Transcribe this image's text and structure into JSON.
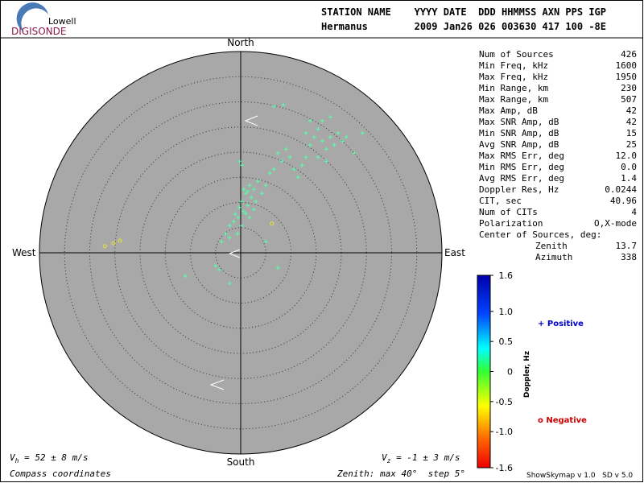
{
  "logo": {
    "top": "Lowell",
    "bottom": "DIGISONDE"
  },
  "header": {
    "columns": "STATION NAME    YYYY DATE  DDD HHMMSS AXN PPS IGP",
    "values": "Hermanus        2009 Jan26 026 003630 417 100 -8E"
  },
  "stats": {
    "rows": [
      [
        "Num of Sources",
        "426"
      ],
      [
        "Min Freq, kHz",
        "1600"
      ],
      [
        "Max Freq, kHz",
        "1950"
      ],
      [
        "Min Range, km",
        "230"
      ],
      [
        "Max Range, km",
        "507"
      ],
      [
        "Max Amp, dB",
        "42"
      ],
      [
        "Max SNR Amp, dB",
        "42"
      ],
      [
        "Min SNR Amp, dB",
        "15"
      ],
      [
        "Avg SNR Amp, dB",
        "25"
      ],
      [
        "Max RMS Err, deg",
        "12.0"
      ],
      [
        "Min RMS Err, deg",
        "0.0"
      ],
      [
        "Avg RMS Err, deg",
        "1.4"
      ],
      [
        "Doppler Res, Hz",
        "0.0244"
      ],
      [
        "CIT, sec",
        "40.96"
      ],
      [
        "Num of CITs",
        "4"
      ],
      [
        "Polarization",
        "O,X-mode"
      ]
    ],
    "center_title": "Center of Sources, deg:",
    "center_rows": [
      [
        "Zenith",
        "13.7"
      ],
      [
        "Azimuth",
        "338"
      ]
    ]
  },
  "chart_data": {
    "type": "skymap",
    "directions": {
      "north": "North",
      "south": "South",
      "east": "East",
      "west": "West"
    },
    "zenith_max": 40,
    "zenith_step": 5,
    "series": [
      {
        "name": "Positive",
        "marker": "+",
        "color": "#55ffaa",
        "legend_color": "#0000cc",
        "x": [
          1.8,
          1.0,
          2.6,
          3.4,
          0.2,
          1.4,
          2.1,
          3.0,
          0.5,
          -0.5,
          1.0,
          -1.4,
          -2.2,
          0.2,
          1.8,
          -0.6,
          -3.0,
          -3.8,
          -2.2,
          2.6,
          4.2,
          5.0,
          5.8,
          6.6,
          8.2,
          7.4,
          9.0,
          9.8,
          10.6,
          11.4,
          12.2,
          13.0,
          13.8,
          14.6,
          15.4,
          16.2,
          17.0,
          17.8,
          18.6,
          19.4,
          20.2,
          21.0,
          16.2,
          17.8,
          13.8,
          13.0,
          15.4,
          17.0,
          22.6,
          24.2,
          8.5,
          6.6,
          0.2,
          -0.2,
          -5.0,
          -4.3,
          -2.2,
          -11.0,
          7.4,
          5.0,
          0.6,
          1.4,
          -0.3,
          -1.1
        ],
        "y": [
          13.4,
          11.8,
          12.6,
          14.2,
          10.2,
          9.4,
          11.0,
          10.2,
          8.3,
          7.0,
          7.8,
          6.2,
          5.4,
          5.4,
          7.0,
          3.8,
          3.8,
          2.2,
          3.0,
          8.6,
          11.8,
          13.4,
          15.8,
          16.6,
          18.2,
          19.8,
          20.6,
          19.0,
          16.6,
          15.0,
          17.4,
          19.0,
          21.4,
          23.0,
          24.6,
          22.2,
          20.6,
          23.0,
          21.4,
          23.8,
          22.2,
          23.0,
          26.2,
          27.0,
          26.2,
          23.8,
          19.0,
          18.2,
          19.8,
          23.8,
          29.4,
          29.1,
          17.4,
          18.2,
          -2.6,
          -3.4,
          -6.1,
          -4.6,
          -3.0,
          2.2,
          12.6,
          12.2,
          9.0,
          7.7
        ]
      },
      {
        "name": "Negative",
        "marker": "o",
        "color": "#e6e633",
        "legend_color": "#cc0000",
        "x": [
          -27.0,
          -25.3,
          -24.0,
          6.2
        ],
        "y": [
          1.3,
          1.9,
          2.4,
          5.8
        ]
      }
    ],
    "colorbar": {
      "title": "Doppler, Hz",
      "lim": [
        -1.6,
        1.6
      ],
      "ticks": [
        1.6,
        {
          "value": 1.0,
          "label": "1.0"
        },
        0.5,
        0,
        -0.5,
        {
          "value": -1.0,
          "label": "-1.0"
        },
        -1.6
      ]
    },
    "vh": {
      "symbol": "V",
      "sub": "h",
      "text": " = 52 ± 8 m/s"
    },
    "vz": {
      "symbol": "V",
      "sub": "z",
      "text": " = -1 ± 3 m/s"
    },
    "coords": "Compass coordinates",
    "zenith_note": "Zenith: max 40°  step 5°",
    "footer": "ShowSkymap v 1.0   SD v 5.0"
  }
}
